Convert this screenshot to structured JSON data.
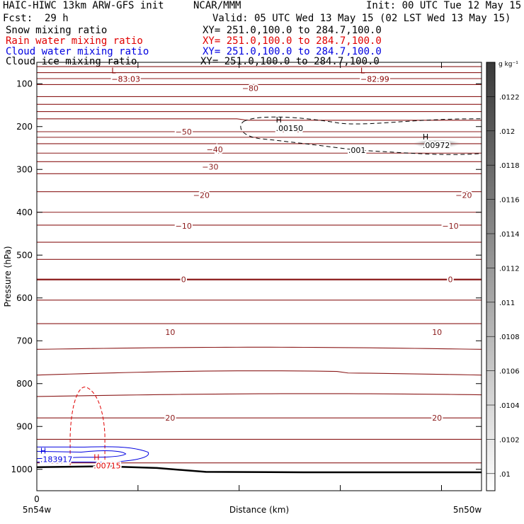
{
  "header": {
    "model": "HAIC-HIWC 13km ARW-GFS init",
    "org": "NCAR/MMM",
    "init": "Init: 00 UTC Tue 12 May 15",
    "fcst_label": "Fcst:",
    "fcst_value": "29 h",
    "valid": "Valid: 05 UTC Wed 13 May 15 (02 LST Wed 13 May 15)",
    "fields": [
      {
        "name": "Snow mixing ratio",
        "xy": "XY= 251.0,100.0 to 284.7,100.0",
        "color": "#000000"
      },
      {
        "name": "Rain water mixing ratio",
        "xy": "XY= 251.0,100.0 to 284.7,100.0",
        "color": "#e00000"
      },
      {
        "name": "Cloud water mixing ratio",
        "xy": "XY= 251.0,100.0 to 284.7,100.0",
        "color": "#0000e0"
      },
      {
        "name": "Cloud ice mixing ratio",
        "xy": "XY= 251.0,100.0 to 284.7,100.0",
        "color": "#000000"
      }
    ]
  },
  "chart_data": {
    "type": "cross-section contour",
    "ylabel": "Pressure (hPa)",
    "xlabel": "Distance (km)",
    "x_tick_label": "0",
    "x_end_labels": [
      "5n54w",
      "5n50w"
    ],
    "yticks": [
      100,
      200,
      300,
      400,
      500,
      600,
      700,
      800,
      900,
      1000
    ],
    "ylim": [
      50,
      1050
    ],
    "x_range": [
      0,
      1
    ],
    "colorbar": {
      "unit": "g kg⁻¹",
      "ticks": [
        ".01",
        ".0102",
        ".0104",
        ".0106",
        ".0108",
        ".011",
        ".0112",
        ".0114",
        ".0116",
        ".0118",
        ".012",
        ".0122"
      ],
      "min": 0.0099,
      "max": 0.0124
    },
    "temperature_labels": [
      {
        "text": "−80",
        "p": 110,
        "x": [
          0.48
        ]
      },
      {
        "text": "−50",
        "p": 212,
        "x": [
          0.33
        ]
      },
      {
        "text": "−40",
        "p": 253,
        "x": [
          0.4
        ]
      },
      {
        "text": "−30",
        "p": 294,
        "x": [
          0.39
        ]
      },
      {
        "text": "−20",
        "p": 360,
        "x": [
          0.37,
          0.96
        ]
      },
      {
        "text": "−10",
        "p": 432,
        "x": [
          0.33,
          0.93
        ]
      },
      {
        "text": "0",
        "p": 557,
        "x": [
          0.33,
          0.93
        ]
      },
      {
        "text": "10",
        "p": 680,
        "x": [
          0.3,
          0.9
        ]
      },
      {
        "text": "20",
        "p": 880,
        "x": [
          0.3,
          0.9
        ]
      }
    ],
    "extrema": [
      {
        "sym": "L",
        "value": "−83.03",
        "p": 82,
        "x": 0.19,
        "color": "#8b0000"
      },
      {
        "sym": "L",
        "value": "−82.99",
        "p": 82,
        "x": 0.75,
        "color": "#8b0000"
      },
      {
        "sym": "H",
        "value": ".00150",
        "p": 197,
        "x": 0.56,
        "color": "#000000"
      },
      {
        "sym": "H",
        "value": ".00972",
        "p": 237,
        "x": 0.89,
        "color": "#000000"
      },
      {
        "sym": "H",
        "value": ".183917",
        "p": 970,
        "x": 0.03,
        "color": "#0000e0"
      },
      {
        "sym": "H",
        "value": ".00715",
        "p": 985,
        "x": 0.15,
        "color": "#e00000"
      }
    ],
    "contour_labels": [
      {
        "text": ".001",
        "p": 255,
        "x": 0.72,
        "color": "#000000"
      }
    ],
    "isotherm_levels_p": [
      60,
      74,
      88,
      102,
      130,
      148,
      165,
      182,
      212,
      225,
      240,
      262,
      282,
      310,
      352,
      400,
      430,
      470,
      510,
      557,
      605,
      660,
      720,
      780,
      830,
      880,
      930,
      985
    ]
  }
}
